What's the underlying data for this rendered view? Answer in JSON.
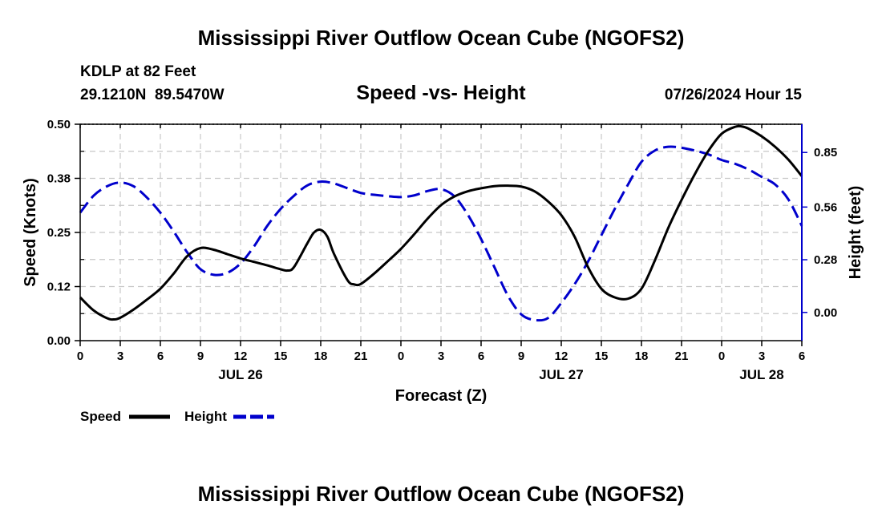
{
  "chart_data": {
    "type": "line",
    "title": "Mississippi River Outflow Ocean Cube (NGOFS2)",
    "footer_title": "Mississippi River Outflow Ocean Cube (NGOFS2)",
    "subtitle": "Speed -vs- Height",
    "station": "KDLP at 82 Feet",
    "location": "29.1210N  89.5470W",
    "timestamp": "07/26/2024 Hour 15",
    "xlabel": "Forecast (Z)",
    "ylabel_left": "Speed (Knots)",
    "ylabel_right": "Height (feet)",
    "x_range": [
      0,
      54
    ],
    "x_ticks": [
      0,
      3,
      6,
      9,
      12,
      15,
      18,
      21,
      24,
      27,
      30,
      33,
      36,
      39,
      42,
      45,
      48,
      51,
      54
    ],
    "x_tick_labels": [
      "0",
      "3",
      "6",
      "9",
      "12",
      "15",
      "18",
      "21",
      "0",
      "3",
      "6",
      "9",
      "12",
      "15",
      "18",
      "21",
      "0",
      "3",
      "6"
    ],
    "date_labels": [
      {
        "x": 12,
        "label": "JUL 26"
      },
      {
        "x": 36,
        "label": "JUL 27"
      },
      {
        "x": 51,
        "label": "JUL 28"
      }
    ],
    "y_left_range": [
      0,
      0.5
    ],
    "y_left_ticks": [
      0.0,
      0.125,
      0.25,
      0.375,
      0.5
    ],
    "y_left_tick_labels": [
      "0.00",
      "0.12",
      "0.25",
      "0.38",
      "0.50"
    ],
    "y_right_range": [
      -0.15,
      1.0
    ],
    "y_right_ticks": [
      0.0,
      0.28,
      0.56,
      0.85
    ],
    "y_right_tick_labels": [
      "0.00",
      "0.28",
      "0.56",
      "0.85"
    ],
    "grid": true,
    "legend_position": "bottom-left",
    "series": [
      {
        "name": "Speed",
        "axis": "left",
        "color": "#000000",
        "style": "solid",
        "x": [
          0,
          1,
          2,
          2.5,
          3,
          4,
          5,
          6,
          7,
          8,
          9,
          10,
          11,
          12,
          13,
          14,
          15,
          15.5,
          16,
          17,
          17.5,
          18,
          18.5,
          19,
          20,
          20.5,
          21,
          22,
          23,
          24,
          25,
          26,
          27,
          28,
          29,
          30,
          31,
          32,
          33,
          34,
          35,
          36,
          37,
          38,
          39,
          40,
          41,
          42,
          43,
          44,
          45,
          46,
          47,
          48,
          49,
          49.5,
          50,
          51,
          52,
          53,
          54
        ],
        "values": [
          0.1,
          0.07,
          0.052,
          0.049,
          0.053,
          0.072,
          0.095,
          0.12,
          0.155,
          0.195,
          0.214,
          0.21,
          0.2,
          0.19,
          0.182,
          0.174,
          0.165,
          0.162,
          0.17,
          0.225,
          0.25,
          0.256,
          0.24,
          0.2,
          0.14,
          0.13,
          0.131,
          0.155,
          0.183,
          0.212,
          0.246,
          0.282,
          0.313,
          0.333,
          0.345,
          0.352,
          0.357,
          0.358,
          0.356,
          0.345,
          0.322,
          0.29,
          0.24,
          0.17,
          0.12,
          0.1,
          0.097,
          0.12,
          0.185,
          0.26,
          0.325,
          0.385,
          0.438,
          0.478,
          0.494,
          0.495,
          0.49,
          0.472,
          0.448,
          0.418,
          0.38
        ]
      },
      {
        "name": "Height",
        "axis": "right",
        "color": "#0000cc",
        "style": "dashed",
        "x": [
          0,
          1,
          2,
          3,
          4,
          5,
          6,
          7,
          8,
          9,
          10,
          11,
          12,
          13,
          14,
          15,
          16,
          17,
          18,
          19,
          20,
          21,
          22,
          23,
          24,
          25,
          26,
          27,
          28,
          29,
          30,
          31,
          32,
          33,
          34,
          35,
          36,
          37,
          38,
          39,
          40,
          41,
          42,
          43,
          44,
          45,
          46,
          47,
          48,
          49,
          50,
          51,
          52,
          53,
          54
        ],
        "values": [
          0.53,
          0.62,
          0.67,
          0.69,
          0.67,
          0.61,
          0.53,
          0.43,
          0.32,
          0.23,
          0.2,
          0.21,
          0.26,
          0.35,
          0.46,
          0.55,
          0.62,
          0.675,
          0.695,
          0.685,
          0.66,
          0.635,
          0.625,
          0.618,
          0.613,
          0.622,
          0.645,
          0.655,
          0.617,
          0.52,
          0.39,
          0.24,
          0.09,
          -0.01,
          -0.04,
          -0.03,
          0.05,
          0.15,
          0.27,
          0.41,
          0.55,
          0.68,
          0.8,
          0.86,
          0.88,
          0.875,
          0.86,
          0.84,
          0.81,
          0.79,
          0.76,
          0.72,
          0.68,
          0.6,
          0.46
        ]
      }
    ]
  }
}
